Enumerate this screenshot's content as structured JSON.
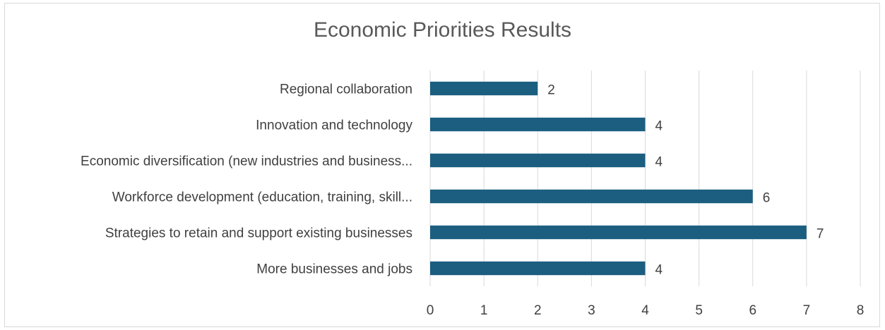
{
  "chart_data": {
    "type": "bar",
    "orientation": "horizontal",
    "title": "Economic Priorities Results",
    "categories": [
      "More businesses and jobs",
      "Strategies to retain and support existing businesses",
      "Workforce development (education, training, skill...",
      "Economic diversification (new industries and business...",
      "Innovation and technology",
      "Regional collaboration"
    ],
    "values": [
      4,
      7,
      6,
      4,
      4,
      2
    ],
    "xlim": [
      0,
      8
    ],
    "x_ticks": [
      "0",
      "1",
      "2",
      "3",
      "4",
      "5",
      "6",
      "7",
      "8"
    ],
    "xlabel": "",
    "ylabel": "",
    "grid": "vertical",
    "legend": "none",
    "bar_color": "#1b5e80",
    "data_labels": true
  }
}
